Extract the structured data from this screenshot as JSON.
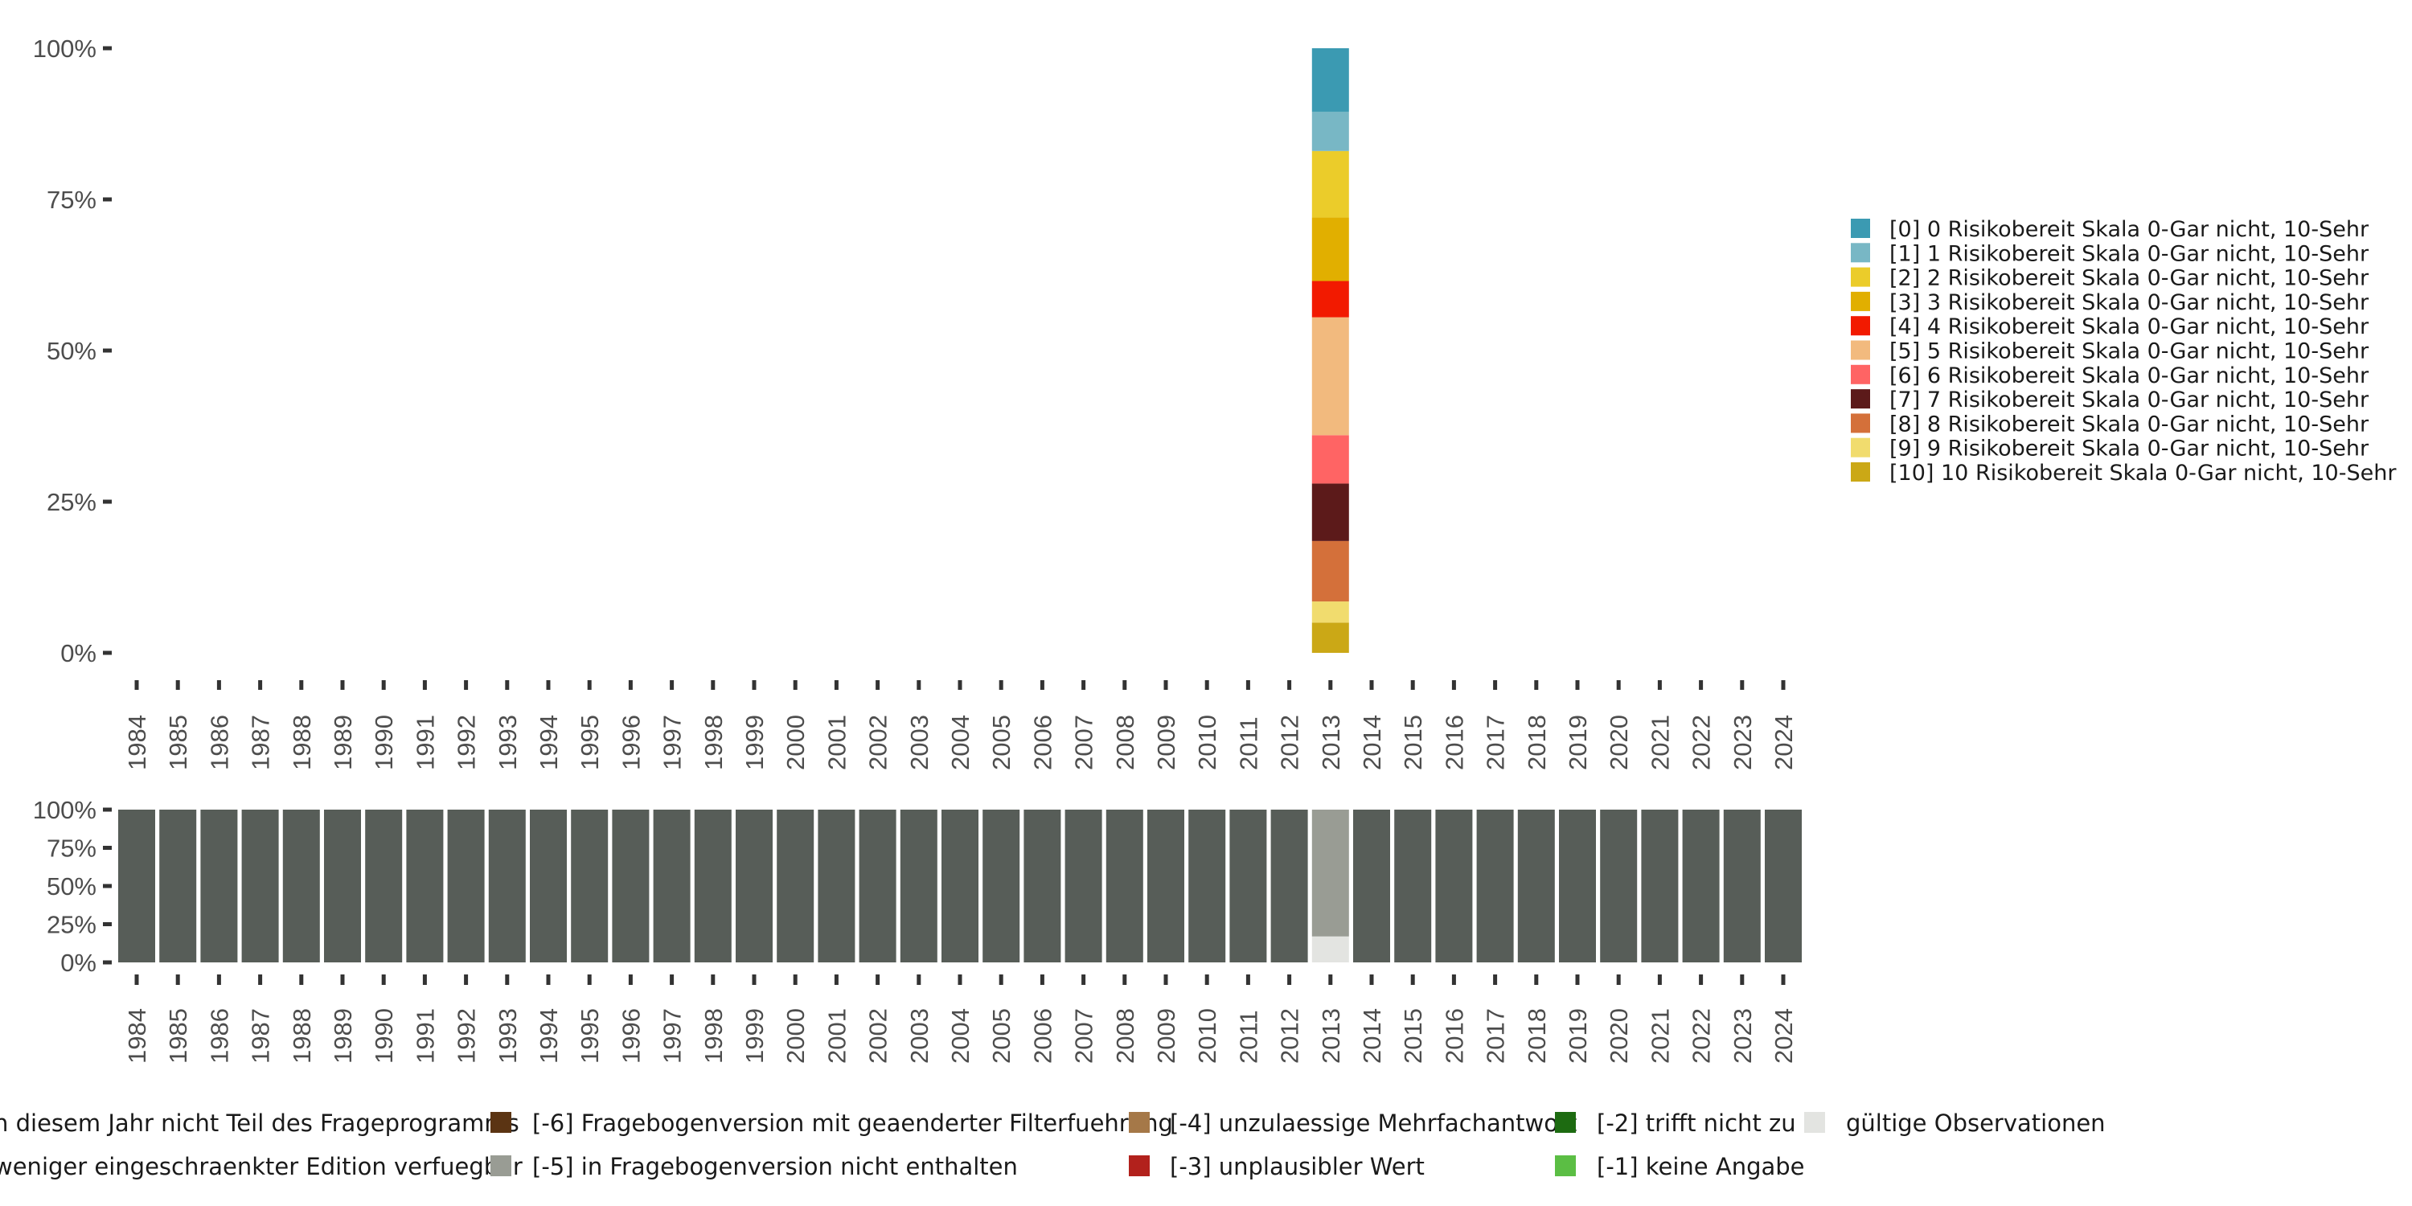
{
  "chart_data": [
    {
      "type": "bar",
      "stacked": true,
      "title": "",
      "xlabel": "",
      "ylabel": "",
      "ylim": [
        0,
        100
      ],
      "y_tick_labels": [
        "0%",
        "25%",
        "50%",
        "75%",
        "100%"
      ],
      "categories": [
        "1984",
        "1985",
        "1986",
        "1987",
        "1988",
        "1989",
        "1990",
        "1991",
        "1992",
        "1993",
        "1994",
        "1995",
        "1996",
        "1997",
        "1998",
        "1999",
        "2000",
        "2001",
        "2002",
        "2003",
        "2004",
        "2005",
        "2006",
        "2007",
        "2008",
        "2009",
        "2010",
        "2011",
        "2012",
        "2013",
        "2014",
        "2015",
        "2016",
        "2017",
        "2018",
        "2019",
        "2020",
        "2021",
        "2022",
        "2023",
        "2024"
      ],
      "legend_position": "right",
      "series": [
        {
          "name": "[0] 0 Risikobereit Skala 0-Gar nicht, 10-Sehr",
          "color": "#3B9AB2",
          "year": "2013",
          "value": 10.5
        },
        {
          "name": "[1] 1 Risikobereit Skala 0-Gar nicht, 10-Sehr",
          "color": "#78B7C5",
          "year": "2013",
          "value": 6.5
        },
        {
          "name": "[2] 2 Risikobereit Skala 0-Gar nicht, 10-Sehr",
          "color": "#EBCC2A",
          "year": "2013",
          "value": 11
        },
        {
          "name": "[3] 3 Risikobereit Skala 0-Gar nicht, 10-Sehr",
          "color": "#E1AF00",
          "year": "2013",
          "value": 10.5
        },
        {
          "name": "[4] 4 Risikobereit Skala 0-Gar nicht, 10-Sehr",
          "color": "#F21A00",
          "year": "2013",
          "value": 6
        },
        {
          "name": "[5] 5 Risikobereit Skala 0-Gar nicht, 10-Sehr",
          "color": "#F2BA7E",
          "year": "2013",
          "value": 19.5
        },
        {
          "name": "[6] 6 Risikobereit Skala 0-Gar nicht, 10-Sehr",
          "color": "#FF6464",
          "year": "2013",
          "value": 8
        },
        {
          "name": "[7] 7 Risikobereit Skala 0-Gar nicht, 10-Sehr",
          "color": "#5C1A1A",
          "year": "2013",
          "value": 9.5
        },
        {
          "name": "[8] 8 Risikobereit Skala 0-Gar nicht, 10-Sehr",
          "color": "#D4703A",
          "year": "2013",
          "value": 10
        },
        {
          "name": "[9] 9 Risikobereit Skala 0-Gar nicht, 10-Sehr",
          "color": "#F1DC6E",
          "year": "2013",
          "value": 3.5
        },
        {
          "name": "[10] 10 Risikobereit Skala 0-Gar nicht, 10-Sehr",
          "color": "#CBA816",
          "year": "2013",
          "value": 5
        }
      ]
    },
    {
      "type": "bar",
      "stacked": true,
      "title": "",
      "xlabel": "",
      "ylabel": "",
      "ylim": [
        0,
        100
      ],
      "y_tick_labels": [
        "0%",
        "25%",
        "50%",
        "75%",
        "100%"
      ],
      "categories": [
        "1984",
        "1985",
        "1986",
        "1987",
        "1988",
        "1989",
        "1990",
        "1991",
        "1992",
        "1993",
        "1994",
        "1995",
        "1996",
        "1997",
        "1998",
        "1999",
        "2000",
        "2001",
        "2002",
        "2003",
        "2004",
        "2005",
        "2006",
        "2007",
        "2008",
        "2009",
        "2010",
        "2011",
        "2012",
        "2013",
        "2014",
        "2015",
        "2016",
        "2017",
        "2018",
        "2019",
        "2020",
        "2021",
        "2022",
        "2023",
        "2024"
      ],
      "legend_position": "bottom",
      "series": [
        {
          "name": "n diesem Jahr nicht Teil des Frageprogramms",
          "color": "#575D58",
          "values": [
            100,
            100,
            100,
            100,
            100,
            100,
            100,
            100,
            100,
            100,
            100,
            100,
            100,
            100,
            100,
            100,
            100,
            100,
            100,
            100,
            100,
            100,
            100,
            100,
            100,
            100,
            100,
            100,
            100,
            0,
            100,
            100,
            100,
            100,
            100,
            100,
            100,
            100,
            100,
            100,
            100
          ]
        },
        {
          "name": "weniger eingeschraenkter Edition verfuegbar",
          "color": "#7A7F79",
          "values": [
            0,
            0,
            0,
            0,
            0,
            0,
            0,
            0,
            0,
            0,
            0,
            0,
            0,
            0,
            0,
            0,
            0,
            0,
            0,
            0,
            0,
            0,
            0,
            0,
            0,
            0,
            0,
            0,
            0,
            0,
            0,
            0,
            0,
            0,
            0,
            0,
            0,
            0,
            0,
            0,
            0
          ]
        },
        {
          "name": "[-6] Fragebogenversion mit geaenderter Filterfuehrung",
          "color": "#5B3413",
          "values": [
            0,
            0,
            0,
            0,
            0,
            0,
            0,
            0,
            0,
            0,
            0,
            0,
            0,
            0,
            0,
            0,
            0,
            0,
            0,
            0,
            0,
            0,
            0,
            0,
            0,
            0,
            0,
            0,
            0,
            0,
            0,
            0,
            0,
            0,
            0,
            0,
            0,
            0,
            0,
            0,
            0
          ]
        },
        {
          "name": "[-5] in Fragebogenversion nicht enthalten",
          "color": "#999C94",
          "values": [
            0,
            0,
            0,
            0,
            0,
            0,
            0,
            0,
            0,
            0,
            0,
            0,
            0,
            0,
            0,
            0,
            0,
            0,
            0,
            0,
            0,
            0,
            0,
            0,
            0,
            0,
            0,
            0,
            0,
            83,
            0,
            0,
            0,
            0,
            0,
            0,
            0,
            0,
            0,
            0,
            0
          ]
        },
        {
          "name": "[-4] unzulaessige Mehrfachantwort",
          "color": "#A57848",
          "values": [
            0,
            0,
            0,
            0,
            0,
            0,
            0,
            0,
            0,
            0,
            0,
            0,
            0,
            0,
            0,
            0,
            0,
            0,
            0,
            0,
            0,
            0,
            0,
            0,
            0,
            0,
            0,
            0,
            0,
            0,
            0,
            0,
            0,
            0,
            0,
            0,
            0,
            0,
            0,
            0,
            0
          ]
        },
        {
          "name": "[-3] unplausibler Wert",
          "color": "#B2211C",
          "values": [
            0,
            0,
            0,
            0,
            0,
            0,
            0,
            0,
            0,
            0,
            0,
            0,
            0,
            0,
            0,
            0,
            0,
            0,
            0,
            0,
            0,
            0,
            0,
            0,
            0,
            0,
            0,
            0,
            0,
            0,
            0,
            0,
            0,
            0,
            0,
            0,
            0,
            0,
            0,
            0,
            0
          ]
        },
        {
          "name": "[-2] trifft nicht zu",
          "color": "#1D6B11",
          "values": [
            0,
            0,
            0,
            0,
            0,
            0,
            0,
            0,
            0,
            0,
            0,
            0,
            0,
            0,
            0,
            0,
            0,
            0,
            0,
            0,
            0,
            0,
            0,
            0,
            0,
            0,
            0,
            0,
            0,
            0,
            0,
            0,
            0,
            0,
            0,
            0,
            0,
            0,
            0,
            0,
            0
          ]
        },
        {
          "name": "[-1] keine Angabe",
          "color": "#5BBE44",
          "values": [
            0,
            0,
            0,
            0,
            0,
            0,
            0,
            0,
            0,
            0,
            0,
            0,
            0,
            0,
            0,
            0,
            0,
            0,
            0,
            0,
            0,
            0,
            0,
            0,
            0,
            0,
            0,
            0,
            0,
            0,
            0,
            0,
            0,
            0,
            0,
            0,
            0,
            0,
            0,
            0,
            0
          ]
        },
        {
          "name": "gültige Observationen",
          "color": "#E3E4E1",
          "values": [
            0,
            0,
            0,
            0,
            0,
            0,
            0,
            0,
            0,
            0,
            0,
            0,
            0,
            0,
            0,
            0,
            0,
            0,
            0,
            0,
            0,
            0,
            0,
            0,
            0,
            0,
            0,
            0,
            0,
            17,
            0,
            0,
            0,
            0,
            0,
            0,
            0,
            0,
            0,
            0,
            0
          ]
        }
      ]
    }
  ]
}
